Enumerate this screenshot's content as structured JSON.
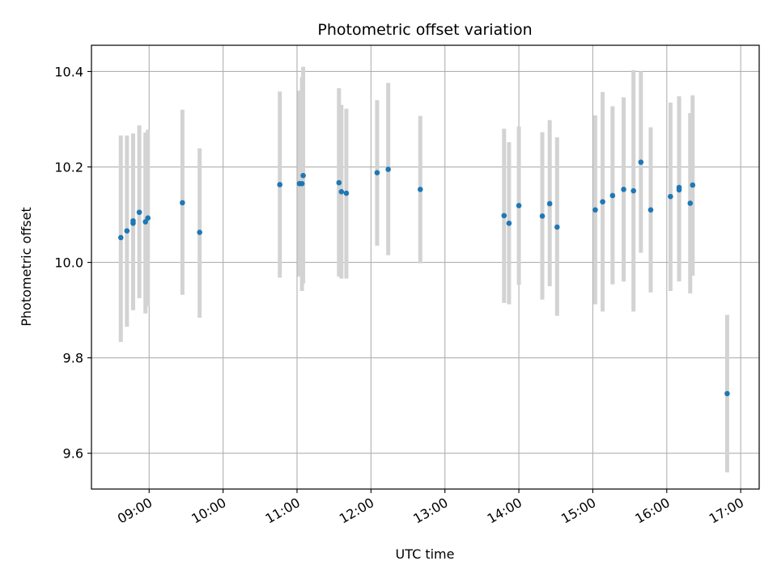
{
  "chart_data": {
    "type": "scatter",
    "title": "Photometric offset variation",
    "xlabel": "UTC time",
    "ylabel": "Photometric offset",
    "x_unit": "hours UTC",
    "xlim": [
      8.22,
      17.25
    ],
    "ylim": [
      9.525,
      10.455
    ],
    "x_ticks": [
      9,
      10,
      11,
      12,
      13,
      14,
      15,
      16,
      17
    ],
    "x_tick_labels": [
      "09:00",
      "10:00",
      "11:00",
      "12:00",
      "13:00",
      "14:00",
      "15:00",
      "16:00",
      "17:00"
    ],
    "y_ticks": [
      9.6,
      9.8,
      10.0,
      10.2,
      10.4
    ],
    "y_tick_labels": [
      "9.6",
      "9.8",
      "10.0",
      "10.2",
      "10.4"
    ],
    "grid": true,
    "colors": {
      "point": "#1f77b4",
      "errorbar": "#d3d3d3",
      "grid": "#b0b0b0"
    },
    "series": [
      {
        "points": [
          {
            "x": 8.617,
            "y": 10.052,
            "lo": 9.833,
            "hi": 10.266
          },
          {
            "x": 8.7,
            "y": 10.066,
            "lo": 9.865,
            "hi": 10.266
          },
          {
            "x": 8.783,
            "y": 10.087,
            "lo": 9.9,
            "hi": 10.27
          },
          {
            "x": 8.783,
            "y": 10.082,
            "lo": 9.9,
            "hi": 10.27
          },
          {
            "x": 8.867,
            "y": 10.105,
            "lo": 9.925,
            "hi": 10.287
          },
          {
            "x": 8.95,
            "y": 10.085,
            "lo": 9.893,
            "hi": 10.272
          },
          {
            "x": 8.983,
            "y": 10.093,
            "lo": 9.908,
            "hi": 10.278
          },
          {
            "x": 9.45,
            "y": 10.125,
            "lo": 9.932,
            "hi": 10.32
          },
          {
            "x": 9.683,
            "y": 10.063,
            "lo": 9.884,
            "hi": 10.239
          },
          {
            "x": 10.767,
            "y": 10.163,
            "lo": 9.968,
            "hi": 10.358
          },
          {
            "x": 11.033,
            "y": 10.165,
            "lo": 9.97,
            "hi": 10.36
          },
          {
            "x": 11.067,
            "y": 10.165,
            "lo": 9.94,
            "hi": 10.388
          },
          {
            "x": 11.083,
            "y": 10.182,
            "lo": 9.956,
            "hi": 10.41
          },
          {
            "x": 11.567,
            "y": 10.167,
            "lo": 9.97,
            "hi": 10.365
          },
          {
            "x": 11.6,
            "y": 10.148,
            "lo": 9.966,
            "hi": 10.33
          },
          {
            "x": 11.667,
            "y": 10.145,
            "lo": 9.966,
            "hi": 10.322
          },
          {
            "x": 12.083,
            "y": 10.188,
            "lo": 10.035,
            "hi": 10.34
          },
          {
            "x": 12.233,
            "y": 10.195,
            "lo": 10.015,
            "hi": 10.376
          },
          {
            "x": 12.667,
            "y": 10.153,
            "lo": 9.998,
            "hi": 10.307
          },
          {
            "x": 13.8,
            "y": 10.098,
            "lo": 9.915,
            "hi": 10.28
          },
          {
            "x": 13.867,
            "y": 10.082,
            "lo": 9.912,
            "hi": 10.252
          },
          {
            "x": 14.0,
            "y": 10.119,
            "lo": 9.953,
            "hi": 10.285
          },
          {
            "x": 14.317,
            "y": 10.097,
            "lo": 9.922,
            "hi": 10.273
          },
          {
            "x": 14.417,
            "y": 10.123,
            "lo": 9.95,
            "hi": 10.298
          },
          {
            "x": 14.517,
            "y": 10.074,
            "lo": 9.888,
            "hi": 10.262
          },
          {
            "x": 15.033,
            "y": 10.11,
            "lo": 9.912,
            "hi": 10.308
          },
          {
            "x": 15.133,
            "y": 10.127,
            "lo": 9.897,
            "hi": 10.357
          },
          {
            "x": 15.267,
            "y": 10.14,
            "lo": 9.954,
            "hi": 10.327
          },
          {
            "x": 15.417,
            "y": 10.153,
            "lo": 9.96,
            "hi": 10.346
          },
          {
            "x": 15.55,
            "y": 10.15,
            "lo": 9.897,
            "hi": 10.403
          },
          {
            "x": 15.65,
            "y": 10.21,
            "lo": 10.02,
            "hi": 10.4
          },
          {
            "x": 15.783,
            "y": 10.11,
            "lo": 9.937,
            "hi": 10.283
          },
          {
            "x": 16.05,
            "y": 10.138,
            "lo": 9.94,
            "hi": 10.335
          },
          {
            "x": 16.167,
            "y": 10.157,
            "lo": 9.965,
            "hi": 10.348
          },
          {
            "x": 16.167,
            "y": 10.152,
            "lo": 9.96,
            "hi": 10.345
          },
          {
            "x": 16.317,
            "y": 10.124,
            "lo": 9.935,
            "hi": 10.313
          },
          {
            "x": 16.35,
            "y": 10.162,
            "lo": 9.972,
            "hi": 10.35
          },
          {
            "x": 16.817,
            "y": 9.725,
            "lo": 9.56,
            "hi": 9.89
          }
        ]
      }
    ]
  }
}
